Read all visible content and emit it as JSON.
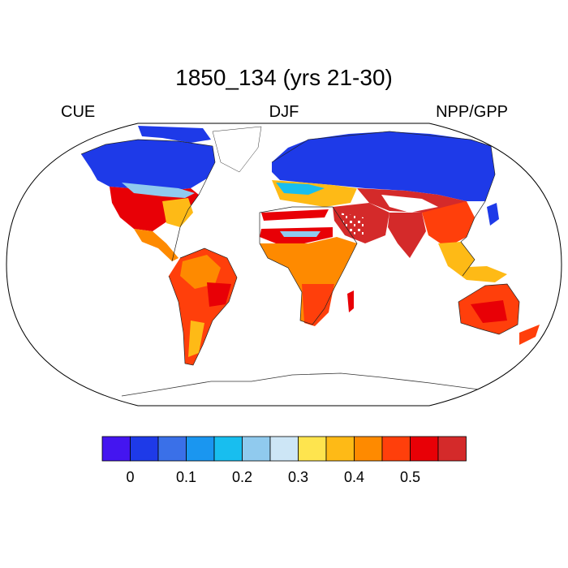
{
  "title": "1850_134 (yrs 21-30)",
  "left_label": "CUE",
  "center_label": "DJF",
  "right_label": "NPP/GPP",
  "colorbar": {
    "colors": [
      "#4415f0",
      "#1e3ae8",
      "#3a70e8",
      "#1a96f0",
      "#18beef",
      "#90caee",
      "#cde6f6",
      "#fee44e",
      "#feba16",
      "#fe8a00",
      "#ff3f0b",
      "#e80006",
      "#d42a2a"
    ],
    "tick_labels": [
      "0",
      "0.1",
      "0.2",
      "0.3",
      "0.4",
      "0.5"
    ]
  },
  "map": {
    "projection": "Robinson",
    "field": "CUE NPP/GPP",
    "season": "DJF"
  }
}
